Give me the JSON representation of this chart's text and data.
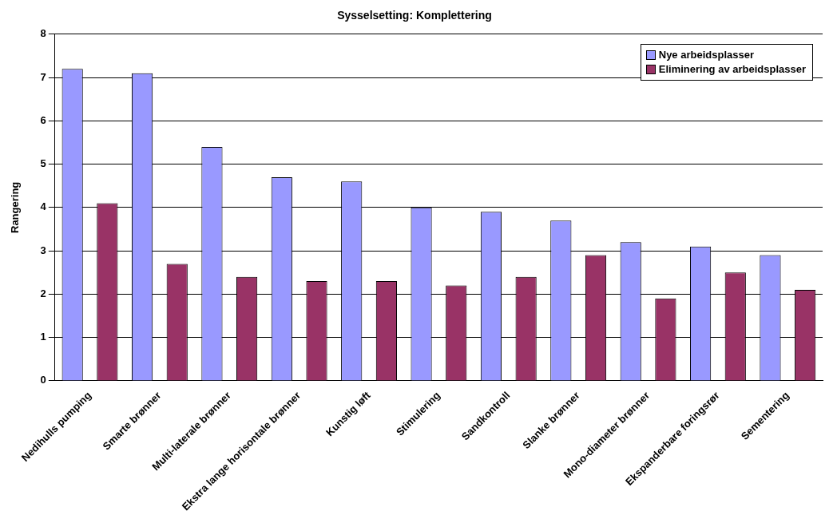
{
  "chart_data": {
    "type": "bar",
    "title": "Sysselsetting: Komplettering",
    "ylabel": "Rangering",
    "categories": [
      "Nedihulls pumping",
      "Smarte brønner",
      "Multi-laterale brønner",
      "Ekstra lange horisontale brønner",
      "Kunstig løft",
      "Stimulering",
      "Sandkontroll",
      "Slanke brønner",
      "Mono-diameter brønner",
      "Ekspanderbare foringsrør",
      "Sementering"
    ],
    "series": [
      {
        "name": "Nye arbeidsplasser",
        "color": "#9999ff",
        "values": [
          7.2,
          7.1,
          5.4,
          4.7,
          4.6,
          4.0,
          3.9,
          3.7,
          3.2,
          3.1,
          2.9
        ]
      },
      {
        "name": "Eliminering av arbeidsplasser",
        "color": "#993366",
        "values": [
          4.1,
          2.7,
          2.4,
          2.3,
          2.3,
          2.2,
          2.4,
          2.9,
          1.9,
          2.5,
          2.1
        ]
      }
    ],
    "ylim": [
      0,
      8
    ],
    "yticks": [
      0,
      1,
      2,
      3,
      4,
      5,
      6,
      7,
      8
    ],
    "grid": "y",
    "legend": "top right"
  }
}
